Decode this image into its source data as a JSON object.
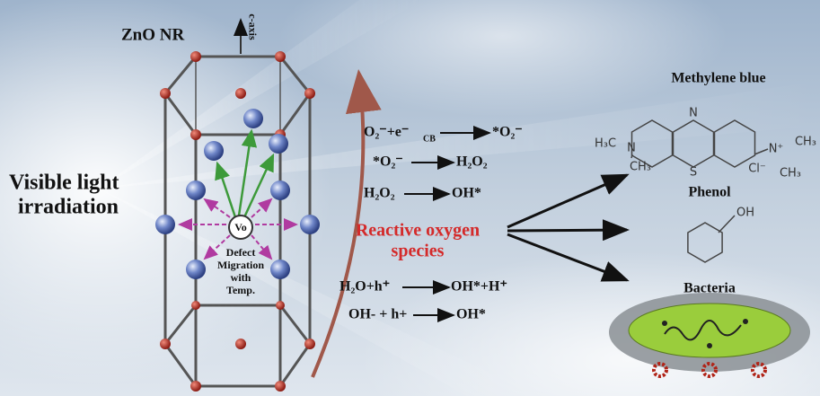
{
  "title": "ZnO NR",
  "axis_label": "c-axis",
  "light_label": [
    "Visible light",
    "irradiation"
  ],
  "vacancy_label": "Vo",
  "defect_label": [
    "Defect",
    "Migration",
    "with",
    "Temp."
  ],
  "reactions": [
    {
      "left": "O₂⁻+e⁻",
      "left_sub": "CB",
      "right": "*O₂⁻"
    },
    {
      "left": "*O₂⁻",
      "right": "H₂O₂"
    },
    {
      "left": "H₂O₂",
      "right": "OH*"
    },
    {
      "left": "H₂O+h⁺",
      "right": "OH*+H⁺"
    },
    {
      "left": "OH- + h+",
      "right": "OH*"
    }
  ],
  "ros_label": [
    "Reactive oxygen",
    "species"
  ],
  "targets": [
    {
      "label": "Methylene blue"
    },
    {
      "label": "Phenol"
    },
    {
      "label": "Bacteria"
    }
  ],
  "methylene_blue_atoms": [
    "H₃C",
    "N",
    "CH₃",
    "N",
    "S",
    "N⁺",
    "CH₃",
    "CH₃",
    "Cl⁻"
  ],
  "phenol_atom": "OH"
}
